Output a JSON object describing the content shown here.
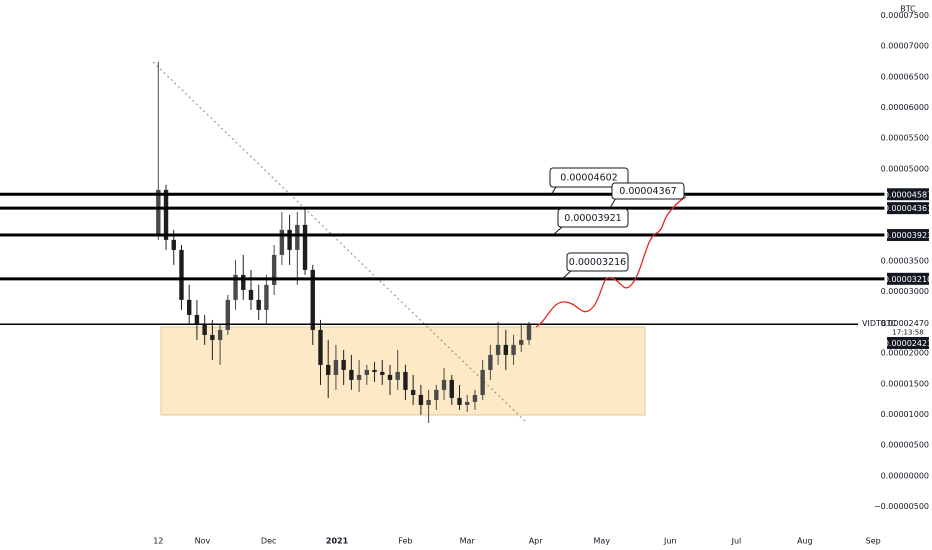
{
  "chart_data": {
    "type": "candlestick",
    "symbol": "VIDTBTC",
    "unit": "BTC",
    "up_color": "#4a4a4a",
    "down_color": "#1e1e1e",
    "x": [
      0,
      1,
      2,
      3,
      4,
      5,
      6,
      7,
      8,
      9,
      10,
      11,
      12,
      13,
      14,
      15,
      16,
      17,
      18,
      19,
      20,
      21,
      22,
      23,
      24,
      25,
      26,
      27,
      28,
      29,
      30,
      31,
      32,
      33,
      34,
      35,
      36,
      37,
      38,
      39,
      40,
      41,
      42,
      43,
      44,
      45,
      46,
      47,
      48
    ],
    "open": [
      3.925e-05,
      4.658e-05,
      3.844e-05,
      3.681e-05,
      2.867e-05,
      2.622e-05,
      2.459e-05,
      2.296e-05,
      2.215e-05,
      2.378e-05,
      2.867e-05,
      3.274e-05,
      3.029e-05,
      2.867e-05,
      2.704e-05,
      3.111e-05,
      3.599e-05,
      4.007e-05,
      3.681e-05,
      4.088e-05,
      3.355e-05,
      2.378e-05,
      1.808e-05,
      1.645e-05,
      1.889e-05,
      1.726e-05,
      1.564e-05,
      1.645e-05,
      1.726e-05,
      1.694e-05,
      1.645e-05,
      1.564e-05,
      1.694e-05,
      1.401e-05,
      1.319e-05,
      1.156e-05,
      1.238e-05,
      1.401e-05,
      1.564e-05,
      1.27e-05,
      1.156e-05,
      1.205e-05,
      1.319e-05,
      1.726e-05,
      1.971e-05,
      2.134e-05,
      1.971e-05,
      2.134e-05,
      2.215e-05
    ],
    "high": [
      6.743e-05,
      4.739e-05,
      4.007e-05,
      3.762e-05,
      3.111e-05,
      2.867e-05,
      2.622e-05,
      2.541e-05,
      2.459e-05,
      2.948e-05,
      3.518e-05,
      3.599e-05,
      3.355e-05,
      3.111e-05,
      3.274e-05,
      3.762e-05,
      4.3e-05,
      4.251e-05,
      4.3e-05,
      4.365e-05,
      3.437e-05,
      2.541e-05,
      2.215e-05,
      2.134e-05,
      2.052e-05,
      1.971e-05,
      1.889e-05,
      1.808e-05,
      1.857e-05,
      1.889e-05,
      1.808e-05,
      2.052e-05,
      1.808e-05,
      1.645e-05,
      1.482e-05,
      1.401e-05,
      1.482e-05,
      1.759e-05,
      1.645e-05,
      1.482e-05,
      1.319e-05,
      1.401e-05,
      1.889e-05,
      2.134e-05,
      2.508e-05,
      2.378e-05,
      2.296e-05,
      2.459e-05,
      2.508e-05
    ],
    "low": [
      3.844e-05,
      3.681e-05,
      3.437e-05,
      2.704e-05,
      2.459e-05,
      2.215e-05,
      2.134e-05,
      1.889e-05,
      1.808e-05,
      2.296e-05,
      2.704e-05,
      2.867e-05,
      2.704e-05,
      2.541e-05,
      2.459e-05,
      2.948e-05,
      3.437e-05,
      3.437e-05,
      3.111e-05,
      3.274e-05,
      2.134e-05,
      1.482e-05,
      1.27e-05,
      1.401e-05,
      1.482e-05,
      1.401e-05,
      1.368e-05,
      1.482e-05,
      1.531e-05,
      1.482e-05,
      1.319e-05,
      1.401e-05,
      1.238e-05,
      1.156e-05,
      9.94e-06,
      8.63e-06,
      1.075e-05,
      1.238e-05,
      1.156e-05,
      1.075e-05,
      1.042e-05,
      1.075e-05,
      1.238e-05,
      1.564e-05,
      1.808e-05,
      1.726e-05,
      1.808e-05,
      2.02e-05,
      2.134e-05
    ],
    "close": [
      4.658e-05,
      3.844e-05,
      3.681e-05,
      2.867e-05,
      2.622e-05,
      2.459e-05,
      2.296e-05,
      2.215e-05,
      2.378e-05,
      2.867e-05,
      3.274e-05,
      3.029e-05,
      2.867e-05,
      2.704e-05,
      3.111e-05,
      3.599e-05,
      4.007e-05,
      3.681e-05,
      4.088e-05,
      3.355e-05,
      2.378e-05,
      1.808e-05,
      1.645e-05,
      1.889e-05,
      1.726e-05,
      1.564e-05,
      1.645e-05,
      1.726e-05,
      1.694e-05,
      1.645e-05,
      1.564e-05,
      1.694e-05,
      1.401e-05,
      1.319e-05,
      1.156e-05,
      1.238e-05,
      1.401e-05,
      1.564e-05,
      1.27e-05,
      1.156e-05,
      1.205e-05,
      1.319e-05,
      1.726e-05,
      1.971e-05,
      2.134e-05,
      1.971e-05,
      2.134e-05,
      2.215e-05,
      2.459e-05
    ],
    "xlim": [
      -20.5,
      94.1
    ],
    "xticks": [
      {
        "value": 0,
        "label": "12"
      },
      {
        "value": 5.71,
        "label": "Nov"
      },
      {
        "value": 14.29,
        "label": "Dec"
      },
      {
        "value": 23.14,
        "label": "2021"
      },
      {
        "value": 32,
        "label": "Feb"
      },
      {
        "value": 40,
        "label": "Mar"
      },
      {
        "value": 48.86,
        "label": "Apr"
      },
      {
        "value": 57.43,
        "label": "May"
      },
      {
        "value": 66.29,
        "label": "Jun"
      },
      {
        "value": 74.86,
        "label": "Jul"
      },
      {
        "value": 83.71,
        "label": "Aug"
      },
      {
        "value": 92.57,
        "label": "Sep"
      }
    ],
    "ylim": [
      -8.8e-06,
      7.75e-05
    ],
    "yticks": [
      {
        "value": 7.5e-05,
        "label": "0.00007500"
      },
      {
        "value": 7e-05,
        "label": "0.00007000"
      },
      {
        "value": 6.5e-05,
        "label": "0.00006500"
      },
      {
        "value": 6e-05,
        "label": "0.00006000"
      },
      {
        "value": 5.5e-05,
        "label": "0.00005500"
      },
      {
        "value": 5e-05,
        "label": "0.00005000"
      },
      {
        "value": 3.5e-05,
        "label": "0.00003500"
      },
      {
        "value": 3e-05,
        "label": "0.00003000"
      },
      {
        "value": 2e-05,
        "label": "0.00002000"
      },
      {
        "value": 1.5e-05,
        "label": "0.00001500"
      },
      {
        "value": 1e-05,
        "label": "0.00001000"
      },
      {
        "value": 5e-06,
        "label": "0.00000500"
      },
      {
        "value": 0,
        "label": "0.00000000"
      },
      {
        "value": -5e-06,
        "label": "−0.00000500"
      }
    ],
    "grid": false,
    "levels": {
      "values": [
        4.587e-05,
        4.361e-05,
        3.923e-05,
        3.21e-05
      ],
      "value_labels": [
        "0.00004587",
        "0.00004361",
        "0.00003923",
        "0.00003210"
      ]
    },
    "last_price": {
      "value": 2.47e-05,
      "label": "0.00002470"
    },
    "countdown": "17:13:58",
    "marker_label": "0.00002423",
    "annotations": [
      "0.00004602",
      "0.00004367",
      "0.00003921",
      "0.00003216"
    ]
  }
}
